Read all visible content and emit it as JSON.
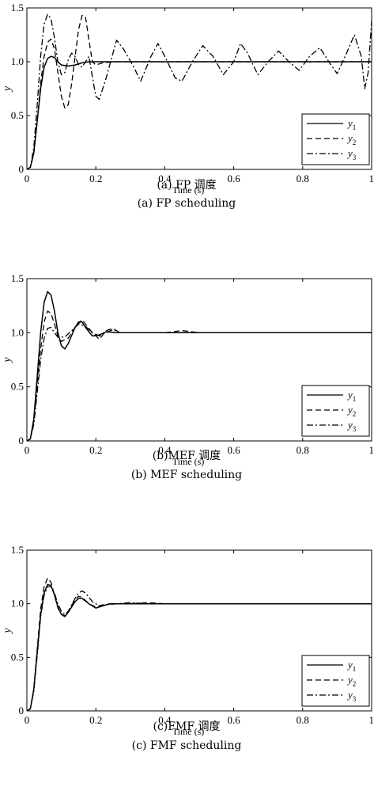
{
  "chart_data": [
    {
      "type": "line",
      "xlabel": "Time (s)",
      "ylabel": "y",
      "xlim": [
        0,
        1
      ],
      "ylim": [
        0,
        1.5
      ],
      "xticks": [
        "0",
        "0.2",
        "0.4",
        "0.6",
        "0.8",
        "1"
      ],
      "yticks": [
        "0",
        "0.5",
        "1.0",
        "1.5"
      ],
      "caption_cn": "(a) FP 调度",
      "caption_en": "(a) FP scheduling",
      "legend": {
        "position": "bottom-right",
        "entries": [
          {
            "base": "y",
            "sub": "1",
            "style": "solid"
          },
          {
            "base": "y",
            "sub": "2",
            "style": "dashed"
          },
          {
            "base": "y",
            "sub": "3",
            "style": "dashdot"
          }
        ]
      },
      "series": [
        {
          "style": "solid",
          "points": [
            [
              0,
              0
            ],
            [
              0.01,
              0.02
            ],
            [
              0.02,
              0.15
            ],
            [
              0.03,
              0.45
            ],
            [
              0.04,
              0.75
            ],
            [
              0.05,
              0.95
            ],
            [
              0.06,
              1.03
            ],
            [
              0.07,
              1.05
            ],
            [
              0.08,
              1.04
            ],
            [
              0.09,
              1.0
            ],
            [
              0.1,
              0.97
            ],
            [
              0.12,
              0.96
            ],
            [
              0.14,
              0.97
            ],
            [
              0.16,
              0.99
            ],
            [
              0.18,
              1.0
            ],
            [
              0.2,
              1.0
            ],
            [
              0.25,
              1.0
            ],
            [
              1.0,
              1.0
            ]
          ]
        },
        {
          "style": "dashed",
          "points": [
            [
              0,
              0
            ],
            [
              0.01,
              0.02
            ],
            [
              0.02,
              0.15
            ],
            [
              0.03,
              0.45
            ],
            [
              0.04,
              0.8
            ],
            [
              0.05,
              1.05
            ],
            [
              0.06,
              1.18
            ],
            [
              0.07,
              1.21
            ],
            [
              0.08,
              1.12
            ],
            [
              0.09,
              0.9
            ],
            [
              0.1,
              0.68
            ],
            [
              0.11,
              0.57
            ],
            [
              0.12,
              0.6
            ],
            [
              0.13,
              0.8
            ],
            [
              0.14,
              1.05
            ],
            [
              0.15,
              1.3
            ],
            [
              0.16,
              1.43
            ],
            [
              0.17,
              1.42
            ],
            [
              0.18,
              1.2
            ],
            [
              0.19,
              1.0
            ],
            [
              0.2,
              0.97
            ],
            [
              0.22,
              0.99
            ],
            [
              0.25,
              1.0
            ],
            [
              1.0,
              1.0
            ]
          ]
        },
        {
          "style": "dashdot",
          "points": [
            [
              0,
              0
            ],
            [
              0.01,
              0.02
            ],
            [
              0.02,
              0.2
            ],
            [
              0.03,
              0.6
            ],
            [
              0.04,
              1.05
            ],
            [
              0.05,
              1.35
            ],
            [
              0.06,
              1.44
            ],
            [
              0.07,
              1.4
            ],
            [
              0.08,
              1.22
            ],
            [
              0.09,
              1.0
            ],
            [
              0.1,
              0.88
            ],
            [
              0.11,
              0.9
            ],
            [
              0.12,
              1.02
            ],
            [
              0.13,
              1.08
            ],
            [
              0.14,
              1.05
            ],
            [
              0.15,
              0.97
            ],
            [
              0.16,
              0.95
            ],
            [
              0.17,
              1.0
            ],
            [
              0.18,
              1.05
            ],
            [
              0.19,
              0.86
            ],
            [
              0.2,
              0.68
            ],
            [
              0.21,
              0.65
            ],
            [
              0.23,
              0.85
            ],
            [
              0.26,
              1.2
            ],
            [
              0.28,
              1.12
            ],
            [
              0.31,
              0.95
            ],
            [
              0.33,
              0.82
            ],
            [
              0.36,
              1.05
            ],
            [
              0.38,
              1.17
            ],
            [
              0.4,
              1.05
            ],
            [
              0.43,
              0.85
            ],
            [
              0.45,
              0.82
            ],
            [
              0.48,
              1.0
            ],
            [
              0.51,
              1.15
            ],
            [
              0.54,
              1.05
            ],
            [
              0.57,
              0.88
            ],
            [
              0.6,
              1.0
            ],
            [
              0.62,
              1.17
            ],
            [
              0.64,
              1.08
            ],
            [
              0.67,
              0.88
            ],
            [
              0.7,
              1.0
            ],
            [
              0.73,
              1.1
            ],
            [
              0.76,
              1.0
            ],
            [
              0.79,
              0.92
            ],
            [
              0.82,
              1.05
            ],
            [
              0.85,
              1.13
            ],
            [
              0.88,
              0.98
            ],
            [
              0.9,
              0.89
            ],
            [
              0.93,
              1.1
            ],
            [
              0.95,
              1.25
            ],
            [
              0.97,
              1.05
            ],
            [
              0.98,
              0.75
            ],
            [
              0.99,
              0.9
            ],
            [
              1.0,
              1.38
            ]
          ]
        }
      ]
    },
    {
      "type": "line",
      "xlabel": "Time (s)",
      "ylabel": "y",
      "xlim": [
        0,
        1
      ],
      "ylim": [
        0,
        1.5
      ],
      "xticks": [
        "0",
        "0.2",
        "0.4",
        "0.6",
        "0.8",
        "1"
      ],
      "yticks": [
        "0",
        "0.5",
        "1.0",
        "1.5"
      ],
      "caption_cn": "(b)MEF 调度",
      "caption_en": "(b) MEF scheduling",
      "legend": {
        "position": "bottom-right",
        "entries": [
          {
            "base": "y",
            "sub": "1",
            "style": "solid"
          },
          {
            "base": "y",
            "sub": "2",
            "style": "dashed"
          },
          {
            "base": "y",
            "sub": "3",
            "style": "dashdot"
          }
        ]
      },
      "series": [
        {
          "style": "solid",
          "points": [
            [
              0,
              0
            ],
            [
              0.01,
              0.02
            ],
            [
              0.02,
              0.2
            ],
            [
              0.03,
              0.6
            ],
            [
              0.04,
              1.0
            ],
            [
              0.05,
              1.28
            ],
            [
              0.06,
              1.38
            ],
            [
              0.07,
              1.35
            ],
            [
              0.08,
              1.2
            ],
            [
              0.09,
              1.0
            ],
            [
              0.1,
              0.88
            ],
            [
              0.11,
              0.85
            ],
            [
              0.12,
              0.9
            ],
            [
              0.14,
              1.05
            ],
            [
              0.15,
              1.1
            ],
            [
              0.16,
              1.1
            ],
            [
              0.17,
              1.05
            ],
            [
              0.19,
              0.97
            ],
            [
              0.21,
              0.98
            ],
            [
              0.23,
              1.01
            ],
            [
              0.26,
              1.0
            ],
            [
              1.0,
              1.0
            ]
          ]
        },
        {
          "style": "dashed",
          "points": [
            [
              0,
              0
            ],
            [
              0.01,
              0.02
            ],
            [
              0.02,
              0.18
            ],
            [
              0.03,
              0.5
            ],
            [
              0.04,
              0.85
            ],
            [
              0.05,
              1.1
            ],
            [
              0.06,
              1.2
            ],
            [
              0.07,
              1.18
            ],
            [
              0.08,
              1.08
            ],
            [
              0.09,
              0.97
            ],
            [
              0.1,
              0.92
            ],
            [
              0.12,
              0.95
            ],
            [
              0.14,
              1.05
            ],
            [
              0.16,
              1.12
            ],
            [
              0.17,
              1.08
            ],
            [
              0.19,
              1.0
            ],
            [
              0.21,
              0.94
            ],
            [
              0.23,
              1.02
            ],
            [
              0.25,
              1.04
            ],
            [
              0.27,
              1.0
            ],
            [
              0.35,
              1.0
            ],
            [
              0.4,
              1.0
            ],
            [
              0.45,
              1.02
            ],
            [
              0.5,
              1.0
            ],
            [
              1.0,
              1.0
            ]
          ]
        },
        {
          "style": "dashdot",
          "points": [
            [
              0,
              0
            ],
            [
              0.01,
              0.02
            ],
            [
              0.02,
              0.15
            ],
            [
              0.03,
              0.45
            ],
            [
              0.04,
              0.75
            ],
            [
              0.05,
              0.95
            ],
            [
              0.06,
              1.04
            ],
            [
              0.07,
              1.05
            ],
            [
              0.08,
              1.0
            ],
            [
              0.09,
              0.96
            ],
            [
              0.11,
              0.96
            ],
            [
              0.13,
              1.02
            ],
            [
              0.15,
              1.08
            ],
            [
              0.17,
              1.06
            ],
            [
              0.19,
              1.0
            ],
            [
              0.21,
              0.97
            ],
            [
              0.23,
              1.0
            ],
            [
              0.25,
              1.03
            ],
            [
              0.27,
              1.0
            ],
            [
              1.0,
              1.0
            ]
          ]
        }
      ]
    },
    {
      "type": "line",
      "xlabel": "Time (s)",
      "ylabel": "y",
      "xlim": [
        0,
        1
      ],
      "ylim": [
        0,
        1.5
      ],
      "xticks": [
        "0",
        "0.2",
        "0.4",
        "0.6",
        "0.8",
        "1"
      ],
      "yticks": [
        "0",
        "0.5",
        "1.0",
        "1.5"
      ],
      "caption_cn": "(c)FMF 调度",
      "caption_en": "(c) FMF scheduling",
      "legend": {
        "position": "bottom-right",
        "entries": [
          {
            "base": "y",
            "sub": "1",
            "style": "solid"
          },
          {
            "base": "y",
            "sub": "2",
            "style": "dashed"
          },
          {
            "base": "y",
            "sub": "3",
            "style": "dashdot"
          }
        ]
      },
      "series": [
        {
          "style": "solid",
          "points": [
            [
              0,
              0
            ],
            [
              0.01,
              0.02
            ],
            [
              0.02,
              0.2
            ],
            [
              0.03,
              0.55
            ],
            [
              0.04,
              0.9
            ],
            [
              0.05,
              1.1
            ],
            [
              0.06,
              1.18
            ],
            [
              0.07,
              1.17
            ],
            [
              0.08,
              1.08
            ],
            [
              0.09,
              0.97
            ],
            [
              0.1,
              0.9
            ],
            [
              0.11,
              0.88
            ],
            [
              0.12,
              0.92
            ],
            [
              0.14,
              1.02
            ],
            [
              0.15,
              1.05
            ],
            [
              0.16,
              1.05
            ],
            [
              0.18,
              1.0
            ],
            [
              0.2,
              0.96
            ],
            [
              0.22,
              0.98
            ],
            [
              0.24,
              1.0
            ],
            [
              0.3,
              1.0
            ],
            [
              1.0,
              1.0
            ]
          ]
        },
        {
          "style": "dashed",
          "points": [
            [
              0,
              0
            ],
            [
              0.01,
              0.02
            ],
            [
              0.02,
              0.2
            ],
            [
              0.03,
              0.58
            ],
            [
              0.04,
              0.95
            ],
            [
              0.05,
              1.16
            ],
            [
              0.06,
              1.24
            ],
            [
              0.07,
              1.2
            ],
            [
              0.08,
              1.08
            ],
            [
              0.09,
              0.96
            ],
            [
              0.1,
              0.9
            ],
            [
              0.11,
              0.89
            ],
            [
              0.12,
              0.93
            ],
            [
              0.14,
              1.04
            ],
            [
              0.15,
              1.07
            ],
            [
              0.16,
              1.06
            ],
            [
              0.18,
              1.0
            ],
            [
              0.2,
              0.97
            ],
            [
              0.22,
              0.99
            ],
            [
              0.25,
              1.0
            ],
            [
              0.3,
              1.0
            ],
            [
              0.35,
              1.01
            ],
            [
              0.4,
              1.0
            ],
            [
              1.0,
              1.0
            ]
          ]
        },
        {
          "style": "dashdot",
          "points": [
            [
              0,
              0
            ],
            [
              0.01,
              0.02
            ],
            [
              0.02,
              0.18
            ],
            [
              0.03,
              0.52
            ],
            [
              0.04,
              0.88
            ],
            [
              0.05,
              1.08
            ],
            [
              0.06,
              1.16
            ],
            [
              0.07,
              1.16
            ],
            [
              0.08,
              1.1
            ],
            [
              0.09,
              1.0
            ],
            [
              0.1,
              0.93
            ],
            [
              0.11,
              0.9
            ],
            [
              0.12,
              0.93
            ],
            [
              0.14,
              1.05
            ],
            [
              0.15,
              1.1
            ],
            [
              0.16,
              1.12
            ],
            [
              0.17,
              1.1
            ],
            [
              0.19,
              1.02
            ],
            [
              0.21,
              0.98
            ],
            [
              0.23,
              0.99
            ],
            [
              0.26,
              1.0
            ],
            [
              0.3,
              1.01
            ],
            [
              0.35,
              1.0
            ],
            [
              1.0,
              1.0
            ]
          ]
        }
      ]
    }
  ]
}
